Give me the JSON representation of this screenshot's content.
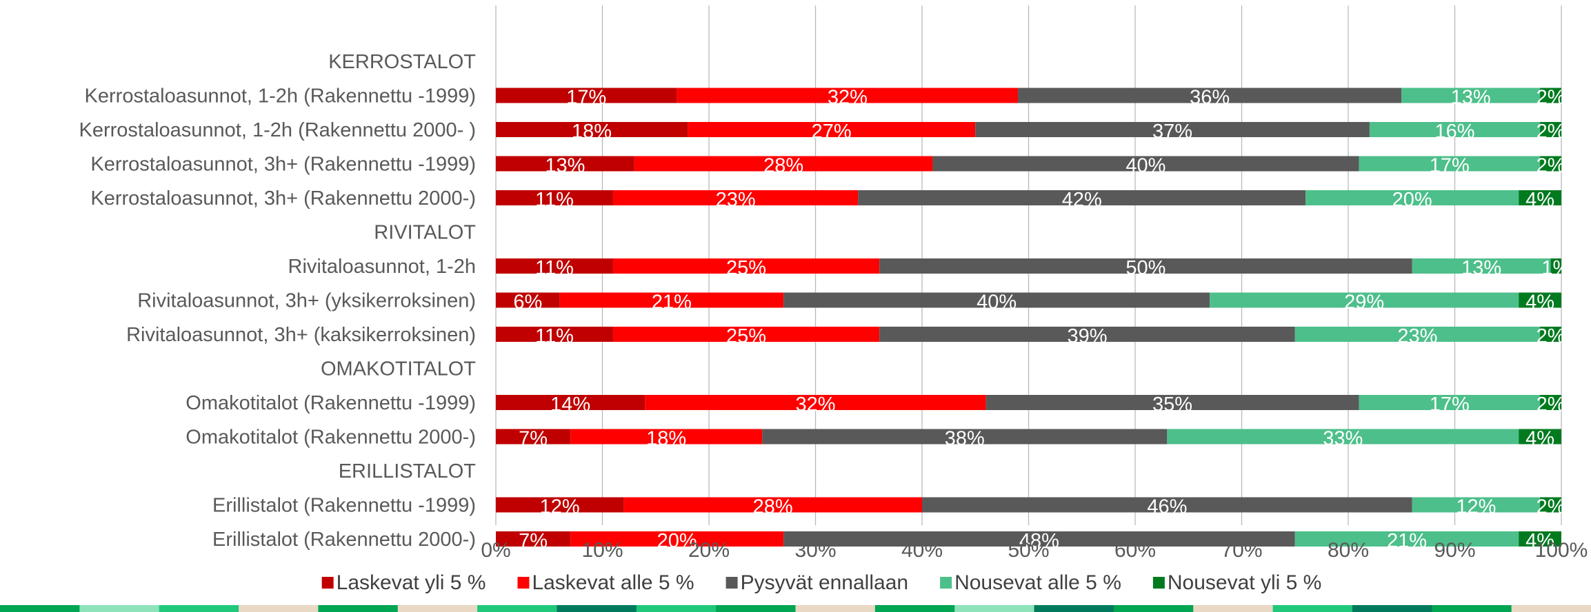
{
  "chart_data": {
    "type": "bar",
    "orientation": "horizontal",
    "stacked": true,
    "percent": true,
    "categories": [
      "KERROSTALOT",
      "Kerrostaloasunnot, 1-2h (Rakennettu -1999)",
      "Kerrostaloasunnot, 1-2h (Rakennettu 2000- )",
      "Kerrostaloasunnot, 3h+ (Rakennettu -1999)",
      "Kerrostaloasunnot, 3h+ (Rakennettu 2000-)",
      "RIVITALOT",
      "Rivitaloasunnot, 1-2h",
      "Rivitaloasunnot, 3h+ (yksikerroksinen)",
      "Rivitaloasunnot, 3h+ (kaksikerroksinen)",
      "OMAKOTITALOT",
      "Omakotitalot (Rakennettu -1999)",
      "Omakotitalot (Rakennettu 2000-)",
      "ERILLISTALOT",
      "Erillistalot (Rakennettu -1999)",
      "Erillistalot (Rakennettu 2000-)"
    ],
    "series": [
      {
        "name": "Laskevat yli 5 %",
        "color": "#c00000",
        "values": [
          null,
          17,
          18,
          13,
          11,
          null,
          11,
          6,
          11,
          null,
          14,
          7,
          null,
          12,
          7
        ]
      },
      {
        "name": "Laskevat  alle 5 %",
        "color": "#ff0000",
        "values": [
          null,
          32,
          27,
          28,
          23,
          null,
          25,
          21,
          25,
          null,
          32,
          18,
          null,
          28,
          20
        ]
      },
      {
        "name": "Pysyvät ennallaan",
        "color": "#595959",
        "values": [
          null,
          36,
          37,
          40,
          42,
          null,
          50,
          40,
          39,
          null,
          35,
          38,
          null,
          46,
          48
        ]
      },
      {
        "name": "Nousevat alle 5 %",
        "color": "#4dbf8a",
        "values": [
          null,
          13,
          16,
          17,
          20,
          null,
          13,
          29,
          23,
          null,
          17,
          33,
          null,
          12,
          21
        ]
      },
      {
        "name": "Nousevat yli 5 %",
        "color": "#007a1f",
        "values": [
          null,
          2,
          2,
          2,
          4,
          null,
          1,
          4,
          2,
          null,
          2,
          4,
          null,
          2,
          4
        ]
      }
    ],
    "xlim": [
      0,
      100
    ],
    "x_ticks": [
      "0%",
      "10%",
      "20%",
      "30%",
      "40%",
      "50%",
      "60%",
      "70%",
      "80%",
      "90%",
      "100%"
    ],
    "grid": "vertical",
    "legend": "bottom"
  },
  "decor_strip": [
    "#00a651",
    "#8fe3bb",
    "#1fc87a",
    "#e9d8c4",
    "#00a651",
    "#e9d8c4",
    "#1fc87a",
    "#007a5c",
    "#1fc87a",
    "#00a651",
    "#e9d8c4",
    "#00a651",
    "#8fe3bb",
    "#007a5c",
    "#00a651",
    "#e9d8c4",
    "#1fc87a",
    "#007a5c",
    "#00a651",
    "#e9d8c4"
  ]
}
